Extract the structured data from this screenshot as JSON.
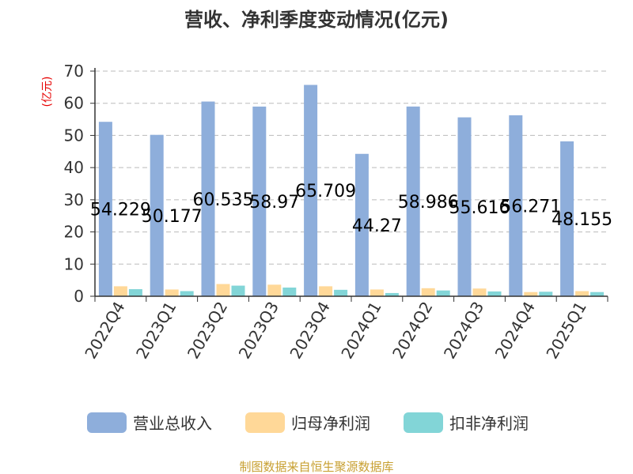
{
  "chart_data": {
    "type": "bar",
    "title": "营收、净利季度变动情况(亿元)",
    "ylabel": "(亿元)",
    "xlabel": "",
    "ylim": [
      0,
      70
    ],
    "yticks": [
      0,
      10,
      20,
      30,
      40,
      50,
      60,
      70
    ],
    "grid": true,
    "legend_position": "bottom",
    "categories": [
      "2022Q4",
      "2023Q1",
      "2023Q2",
      "2023Q3",
      "2023Q4",
      "2024Q1",
      "2024Q2",
      "2024Q3",
      "2024Q4",
      "2025Q1"
    ],
    "series": [
      {
        "name": "营业总收入",
        "color": "#8eaedb",
        "values": [
          54.229,
          50.177,
          60.535,
          58.97,
          65.709,
          44.27,
          58.986,
          55.616,
          56.271,
          48.155
        ],
        "data_labels": [
          "54.229",
          "50.177",
          "60.535",
          "58.97",
          "65.709",
          "44.27",
          "58.986",
          "55.616",
          "56.271",
          "48.155"
        ]
      },
      {
        "name": "归母净利润",
        "color": "#ffd898",
        "values": [
          3.1,
          2.1,
          3.8,
          3.6,
          3.1,
          2.1,
          2.5,
          2.4,
          1.3,
          1.6
        ]
      },
      {
        "name": "扣非净利润",
        "color": "#82d5d7",
        "values": [
          2.2,
          1.6,
          3.3,
          2.7,
          2.0,
          1.0,
          1.8,
          1.5,
          1.4,
          1.3
        ]
      }
    ],
    "source": "制图数据来自恒生聚源数据库"
  }
}
